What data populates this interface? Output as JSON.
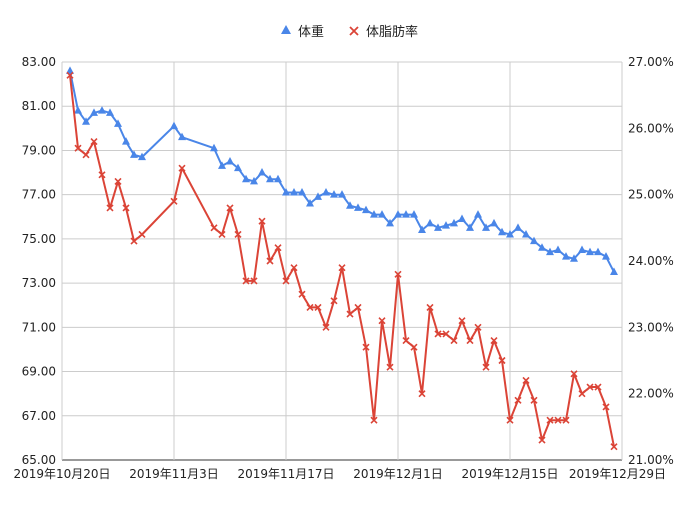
{
  "chart_data": {
    "type": "line",
    "title": "",
    "legend": {
      "position": "top-center",
      "entries": [
        {
          "name": "体重",
          "marker": "triangle",
          "color": "#4a86e8"
        },
        {
          "name": "体脂肪率",
          "marker": "x",
          "color": "#db4437"
        }
      ]
    },
    "x_axis": {
      "type": "date",
      "range": [
        "2019-10-20",
        "2019-12-29"
      ],
      "ticks": [
        {
          "date": "2019-10-20",
          "label": "2019年10月20日"
        },
        {
          "date": "2019-11-03",
          "label": "2019年11月3日"
        },
        {
          "date": "2019-11-17",
          "label": "2019年11月17日"
        },
        {
          "date": "2019-12-01",
          "label": "2019年12月1日"
        },
        {
          "date": "2019-12-15",
          "label": "2019年12月15日"
        },
        {
          "date": "2019-12-29",
          "label": "2019年12月29日"
        }
      ]
    },
    "y_left": {
      "min": 65,
      "max": 83,
      "ticks": [
        "65.00",
        "67.00",
        "69.00",
        "71.00",
        "73.00",
        "75.00",
        "77.00",
        "79.00",
        "81.00",
        "83.00"
      ]
    },
    "y_right": {
      "min": 21.0,
      "max": 27.0,
      "ticks": [
        "21.00%",
        "22.00%",
        "23.00%",
        "24.00%",
        "25.00%",
        "26.00%",
        "27.00%"
      ]
    },
    "grid": true,
    "series": [
      {
        "name": "体重",
        "axis": "left",
        "color": "#4a86e8",
        "marker": "triangle",
        "points": [
          [
            "2019-10-21",
            82.6
          ],
          [
            "2019-10-22",
            80.8
          ],
          [
            "2019-10-23",
            80.3
          ],
          [
            "2019-10-24",
            80.7
          ],
          [
            "2019-10-25",
            80.8
          ],
          [
            "2019-10-26",
            80.7
          ],
          [
            "2019-10-27",
            80.2
          ],
          [
            "2019-10-28",
            79.4
          ],
          [
            "2019-10-29",
            78.8
          ],
          [
            "2019-10-30",
            78.7
          ],
          [
            "2019-11-03",
            80.1
          ],
          [
            "2019-11-04",
            79.6
          ],
          [
            "2019-11-08",
            79.1
          ],
          [
            "2019-11-09",
            78.3
          ],
          [
            "2019-11-10",
            78.5
          ],
          [
            "2019-11-11",
            78.2
          ],
          [
            "2019-11-12",
            77.7
          ],
          [
            "2019-11-13",
            77.6
          ],
          [
            "2019-11-14",
            78.0
          ],
          [
            "2019-11-15",
            77.7
          ],
          [
            "2019-11-16",
            77.7
          ],
          [
            "2019-11-17",
            77.1
          ],
          [
            "2019-11-18",
            77.1
          ],
          [
            "2019-11-19",
            77.1
          ],
          [
            "2019-11-20",
            76.6
          ],
          [
            "2019-11-21",
            76.9
          ],
          [
            "2019-11-22",
            77.1
          ],
          [
            "2019-11-23",
            77.0
          ],
          [
            "2019-11-24",
            77.0
          ],
          [
            "2019-11-25",
            76.5
          ],
          [
            "2019-11-26",
            76.4
          ],
          [
            "2019-11-27",
            76.3
          ],
          [
            "2019-11-28",
            76.1
          ],
          [
            "2019-11-29",
            76.1
          ],
          [
            "2019-11-30",
            75.7
          ],
          [
            "2019-12-01",
            76.1
          ],
          [
            "2019-12-02",
            76.1
          ],
          [
            "2019-12-03",
            76.1
          ],
          [
            "2019-12-04",
            75.4
          ],
          [
            "2019-12-05",
            75.7
          ],
          [
            "2019-12-06",
            75.5
          ],
          [
            "2019-12-07",
            75.6
          ],
          [
            "2019-12-08",
            75.7
          ],
          [
            "2019-12-09",
            75.9
          ],
          [
            "2019-12-10",
            75.5
          ],
          [
            "2019-12-11",
            76.1
          ],
          [
            "2019-12-12",
            75.5
          ],
          [
            "2019-12-13",
            75.7
          ],
          [
            "2019-12-14",
            75.3
          ],
          [
            "2019-12-15",
            75.2
          ],
          [
            "2019-12-16",
            75.5
          ],
          [
            "2019-12-17",
            75.2
          ],
          [
            "2019-12-18",
            74.9
          ],
          [
            "2019-12-19",
            74.6
          ],
          [
            "2019-12-20",
            74.4
          ],
          [
            "2019-12-21",
            74.5
          ],
          [
            "2019-12-22",
            74.2
          ],
          [
            "2019-12-23",
            74.1
          ],
          [
            "2019-12-24",
            74.5
          ],
          [
            "2019-12-25",
            74.4
          ],
          [
            "2019-12-26",
            74.4
          ],
          [
            "2019-12-27",
            74.2
          ],
          [
            "2019-12-28",
            73.5
          ]
        ]
      },
      {
        "name": "体脂肪率",
        "axis": "right",
        "color": "#db4437",
        "marker": "x",
        "points": [
          [
            "2019-10-21",
            26.8
          ],
          [
            "2019-10-22",
            25.7
          ],
          [
            "2019-10-23",
            25.6
          ],
          [
            "2019-10-24",
            25.8
          ],
          [
            "2019-10-25",
            25.3
          ],
          [
            "2019-10-26",
            24.8
          ],
          [
            "2019-10-27",
            25.2
          ],
          [
            "2019-10-28",
            24.8
          ],
          [
            "2019-10-29",
            24.3
          ],
          [
            "2019-10-30",
            24.4
          ],
          [
            "2019-11-03",
            24.9
          ],
          [
            "2019-11-04",
            25.4
          ],
          [
            "2019-11-08",
            24.5
          ],
          [
            "2019-11-09",
            24.4
          ],
          [
            "2019-11-10",
            24.8
          ],
          [
            "2019-11-11",
            24.4
          ],
          [
            "2019-11-12",
            23.7
          ],
          [
            "2019-11-13",
            23.7
          ],
          [
            "2019-11-14",
            24.6
          ],
          [
            "2019-11-15",
            24.0
          ],
          [
            "2019-11-16",
            24.2
          ],
          [
            "2019-11-17",
            23.7
          ],
          [
            "2019-11-18",
            23.9
          ],
          [
            "2019-11-19",
            23.5
          ],
          [
            "2019-11-20",
            23.3
          ],
          [
            "2019-11-21",
            23.3
          ],
          [
            "2019-11-22",
            23.0
          ],
          [
            "2019-11-23",
            23.4
          ],
          [
            "2019-11-24",
            23.9
          ],
          [
            "2019-11-25",
            23.2
          ],
          [
            "2019-11-26",
            23.3
          ],
          [
            "2019-11-27",
            22.7
          ],
          [
            "2019-11-28",
            21.6
          ],
          [
            "2019-11-29",
            23.1
          ],
          [
            "2019-11-30",
            22.4
          ],
          [
            "2019-12-01",
            23.8
          ],
          [
            "2019-12-02",
            22.8
          ],
          [
            "2019-12-03",
            22.7
          ],
          [
            "2019-12-04",
            22.0
          ],
          [
            "2019-12-05",
            23.3
          ],
          [
            "2019-12-06",
            22.9
          ],
          [
            "2019-12-07",
            22.9
          ],
          [
            "2019-12-08",
            22.8
          ],
          [
            "2019-12-09",
            23.1
          ],
          [
            "2019-12-10",
            22.8
          ],
          [
            "2019-12-11",
            23.0
          ],
          [
            "2019-12-12",
            22.4
          ],
          [
            "2019-12-13",
            22.8
          ],
          [
            "2019-12-14",
            22.5
          ],
          [
            "2019-12-15",
            21.6
          ],
          [
            "2019-12-16",
            21.9
          ],
          [
            "2019-12-17",
            22.2
          ],
          [
            "2019-12-18",
            21.9
          ],
          [
            "2019-12-19",
            21.3
          ],
          [
            "2019-12-20",
            21.6
          ],
          [
            "2019-12-21",
            21.6
          ],
          [
            "2019-12-22",
            21.6
          ],
          [
            "2019-12-23",
            22.3
          ],
          [
            "2019-12-24",
            22.0
          ],
          [
            "2019-12-25",
            22.1
          ],
          [
            "2019-12-26",
            22.1
          ],
          [
            "2019-12-27",
            21.8
          ],
          [
            "2019-12-28",
            21.2
          ]
        ]
      }
    ]
  }
}
